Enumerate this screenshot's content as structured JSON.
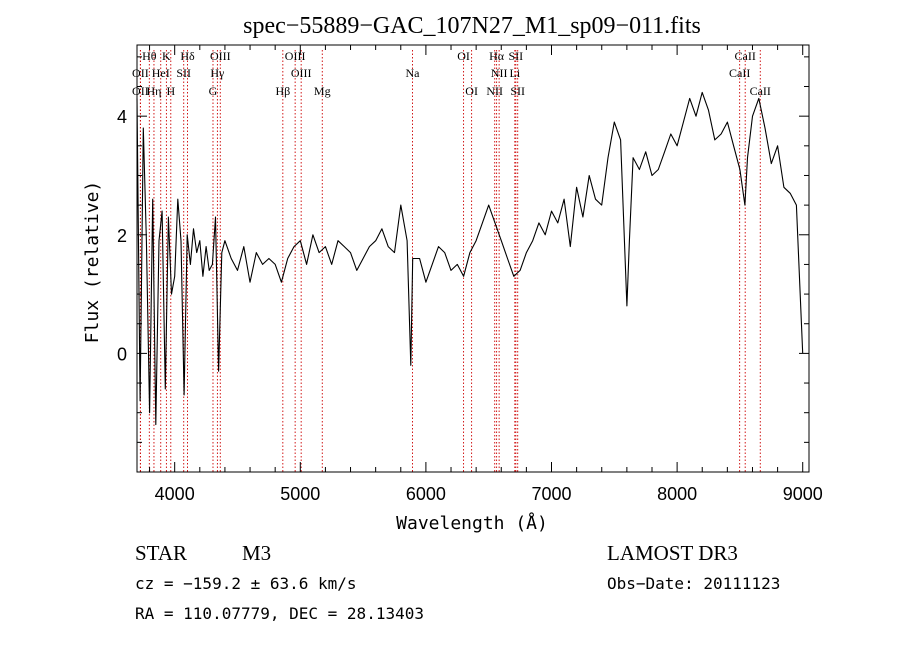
{
  "chart_data": {
    "type": "line",
    "title": "spec−55889−GAC_107N27_M1_sp09−011.fits",
    "xlabel": "Wavelength (Å)",
    "ylabel": "Flux (relative)",
    "xlim": [
      3700,
      9050
    ],
    "ylim": [
      -2.0,
      5.2
    ],
    "x_ticks": [
      4000,
      5000,
      6000,
      7000,
      8000,
      9000
    ],
    "y_ticks": [
      0,
      2,
      4
    ],
    "series": [
      {
        "name": "flux",
        "x": [
          3700,
          3725,
          3750,
          3775,
          3800,
          3825,
          3850,
          3875,
          3900,
          3925,
          3950,
          3975,
          4000,
          4025,
          4050,
          4075,
          4100,
          4125,
          4150,
          4175,
          4200,
          4225,
          4250,
          4275,
          4300,
          4325,
          4350,
          4375,
          4400,
          4450,
          4500,
          4550,
          4600,
          4650,
          4700,
          4750,
          4800,
          4850,
          4900,
          4950,
          5000,
          5050,
          5100,
          5150,
          5200,
          5250,
          5300,
          5350,
          5400,
          5450,
          5500,
          5550,
          5600,
          5650,
          5700,
          5750,
          5800,
          5850,
          5880,
          5895,
          5910,
          5950,
          6000,
          6050,
          6100,
          6150,
          6200,
          6250,
          6300,
          6350,
          6400,
          6450,
          6500,
          6550,
          6600,
          6650,
          6700,
          6750,
          6800,
          6850,
          6900,
          6950,
          7000,
          7050,
          7100,
          7150,
          7200,
          7250,
          7300,
          7350,
          7400,
          7450,
          7500,
          7550,
          7600,
          7620,
          7650,
          7700,
          7750,
          7800,
          7850,
          7900,
          7950,
          8000,
          8050,
          8100,
          8150,
          8200,
          8250,
          8300,
          8350,
          8400,
          8450,
          8500,
          8540,
          8560,
          8600,
          8650,
          8700,
          8750,
          8800,
          8850,
          8900,
          8950,
          9000
        ],
        "y": [
          4.3,
          -0.8,
          3.8,
          1.9,
          -1.0,
          2.6,
          -1.2,
          1.9,
          2.4,
          -0.6,
          2.3,
          1.0,
          1.3,
          2.6,
          1.9,
          -0.7,
          2.0,
          1.5,
          2.1,
          1.7,
          1.9,
          1.3,
          1.8,
          1.4,
          1.5,
          2.3,
          -0.3,
          1.7,
          1.9,
          1.6,
          1.4,
          1.8,
          1.2,
          1.7,
          1.5,
          1.6,
          1.5,
          1.2,
          1.6,
          1.8,
          1.9,
          1.5,
          2.0,
          1.7,
          1.8,
          1.5,
          1.9,
          1.8,
          1.7,
          1.4,
          1.6,
          1.8,
          1.9,
          2.1,
          1.8,
          1.7,
          2.5,
          1.9,
          -0.2,
          1.6,
          1.6,
          1.6,
          1.2,
          1.5,
          1.8,
          1.7,
          1.4,
          1.5,
          1.3,
          1.7,
          1.9,
          2.2,
          2.5,
          2.2,
          1.9,
          1.6,
          1.3,
          1.4,
          1.7,
          1.9,
          2.2,
          2.0,
          2.4,
          2.2,
          2.6,
          1.8,
          2.8,
          2.3,
          3.0,
          2.6,
          2.5,
          3.3,
          3.9,
          3.6,
          0.8,
          1.9,
          3.3,
          3.1,
          3.4,
          3.0,
          3.1,
          3.4,
          3.7,
          3.5,
          3.9,
          4.3,
          4.0,
          4.4,
          4.1,
          3.6,
          3.7,
          3.9,
          3.5,
          3.1,
          2.5,
          3.3,
          4.0,
          4.3,
          3.8,
          3.2,
          3.5,
          2.8,
          2.7,
          2.5,
          0.0
        ]
      }
    ],
    "line_markers": [
      {
        "label": "Hθ",
        "x": 3798,
        "row": 0
      },
      {
        "label": "K",
        "x": 3934,
        "row": 0
      },
      {
        "label": "Hδ",
        "x": 4102,
        "row": 0
      },
      {
        "label": "OIII",
        "x": 4363,
        "row": 0
      },
      {
        "label": "OIII",
        "x": 4959,
        "row": 0
      },
      {
        "label": "OI",
        "x": 6300,
        "row": 0
      },
      {
        "label": "Hα",
        "x": 6563,
        "row": 0
      },
      {
        "label": "SII",
        "x": 6716,
        "row": 0
      },
      {
        "label": "CaII",
        "x": 8542,
        "row": 0
      },
      {
        "label": "OII",
        "x": 3727,
        "row": 1
      },
      {
        "label": "HeI",
        "x": 3889,
        "row": 1
      },
      {
        "label": "SII",
        "x": 4072,
        "row": 1
      },
      {
        "label": "Hγ",
        "x": 4340,
        "row": 1
      },
      {
        "label": "OIII",
        "x": 5007,
        "row": 1
      },
      {
        "label": "Na",
        "x": 5893,
        "row": 1
      },
      {
        "label": "NII",
        "x": 6583,
        "row": 1
      },
      {
        "label": "Li",
        "x": 6708,
        "row": 1
      },
      {
        "label": "CaII",
        "x": 8498,
        "row": 1
      },
      {
        "label": "OII",
        "x": 3727,
        "row": 2
      },
      {
        "label": "Hη",
        "x": 3835,
        "row": 2
      },
      {
        "label": "H",
        "x": 3969,
        "row": 2
      },
      {
        "label": "G",
        "x": 4305,
        "row": 2
      },
      {
        "label": "Hβ",
        "x": 4861,
        "row": 2
      },
      {
        "label": "Mg",
        "x": 5175,
        "row": 2
      },
      {
        "label": "OI",
        "x": 6364,
        "row": 2
      },
      {
        "label": "NII",
        "x": 6548,
        "row": 2
      },
      {
        "label": "SII",
        "x": 6731,
        "row": 2
      },
      {
        "label": "CaII",
        "x": 8662,
        "row": 2
      }
    ],
    "line_marker_color": "#cc0000"
  },
  "info": {
    "object_class": "STAR",
    "subclass": "M3",
    "survey": "LAMOST DR3",
    "cz": "cz = −159.2 ± 63.6 km/s",
    "obs_date": "Obs−Date: 20111123",
    "radec": "RA = 110.07779, DEC =  28.13403"
  }
}
